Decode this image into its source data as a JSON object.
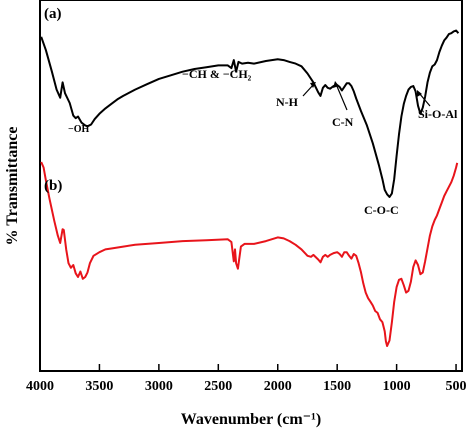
{
  "chart_data": {
    "type": "line",
    "xlabel": "Wavenumber (cm⁻¹)",
    "ylabel": "% Transmittance",
    "xlim": [
      4000,
      450
    ],
    "x_reversed": true,
    "y_ticks_shown": false,
    "xticks": [
      4000,
      3500,
      3000,
      2500,
      2000,
      1500,
      1000,
      500
    ],
    "tick_labels": [
      "4000",
      "3500",
      "3000",
      "2500",
      "2000",
      "1500",
      "1000",
      "500"
    ],
    "series": [
      {
        "color": "#000000",
        "ylim": [
          0,
          100
        ],
        "points": [
          [
            3990,
            89.5
          ],
          [
            3950,
            82.0
          ],
          [
            3900,
            70.0
          ],
          [
            3860,
            60.0
          ],
          [
            3830,
            55.5
          ],
          [
            3810,
            64.0
          ],
          [
            3790,
            58.0
          ],
          [
            3750,
            52.5
          ],
          [
            3720,
            45.5
          ],
          [
            3700,
            44.0
          ],
          [
            3680,
            45.0
          ],
          [
            3650,
            41.5
          ],
          [
            3620,
            40.0
          ],
          [
            3600,
            39.5
          ],
          [
            3570,
            40.5
          ],
          [
            3540,
            43.5
          ],
          [
            3500,
            46.5
          ],
          [
            3450,
            49.5
          ],
          [
            3400,
            52.0
          ],
          [
            3350,
            54.5
          ],
          [
            3300,
            56.5
          ],
          [
            3200,
            60.0
          ],
          [
            3100,
            63.0
          ],
          [
            3000,
            66.0
          ],
          [
            2900,
            68.0
          ],
          [
            2800,
            70.0
          ],
          [
            2700,
            71.5
          ],
          [
            2600,
            72.5
          ],
          [
            2500,
            73.5
          ],
          [
            2420,
            73.5
          ],
          [
            2390,
            72.0
          ],
          [
            2370,
            76.5
          ],
          [
            2350,
            70.0
          ],
          [
            2330,
            75.5
          ],
          [
            2300,
            74.5
          ],
          [
            2250,
            75.0
          ],
          [
            2200,
            74.5
          ],
          [
            2100,
            76.0
          ],
          [
            2000,
            77.0
          ],
          [
            1950,
            76.5
          ],
          [
            1900,
            75.5
          ],
          [
            1850,
            74.5
          ],
          [
            1800,
            73.0
          ],
          [
            1750,
            69.0
          ],
          [
            1700,
            64.0
          ],
          [
            1660,
            58.5
          ],
          [
            1640,
            56.5
          ],
          [
            1620,
            61.0
          ],
          [
            1600,
            62.5
          ],
          [
            1580,
            61.0
          ],
          [
            1560,
            60.5
          ],
          [
            1530,
            62.0
          ],
          [
            1500,
            62.5
          ],
          [
            1480,
            61.5
          ],
          [
            1460,
            59.5
          ],
          [
            1440,
            61.5
          ],
          [
            1420,
            63.5
          ],
          [
            1400,
            63.5
          ],
          [
            1380,
            62.0
          ],
          [
            1360,
            59.0
          ],
          [
            1340,
            55.0
          ],
          [
            1300,
            48.0
          ],
          [
            1250,
            40.0
          ],
          [
            1200,
            30.0
          ],
          [
            1150,
            18.0
          ],
          [
            1120,
            10.0
          ],
          [
            1100,
            4.0
          ],
          [
            1080,
            1.5
          ],
          [
            1060,
            0.0
          ],
          [
            1040,
            2.0
          ],
          [
            1020,
            10.0
          ],
          [
            1000,
            23.0
          ],
          [
            980,
            35.0
          ],
          [
            960,
            45.0
          ],
          [
            940,
            52.0
          ],
          [
            920,
            56.5
          ],
          [
            900,
            60.0
          ],
          [
            880,
            61.5
          ],
          [
            860,
            62.0
          ],
          [
            840,
            59.0
          ],
          [
            820,
            51.0
          ],
          [
            800,
            46.5
          ],
          [
            780,
            50.0
          ],
          [
            760,
            56.0
          ],
          [
            740,
            64.0
          ],
          [
            720,
            69.5
          ],
          [
            700,
            73.0
          ],
          [
            680,
            74.0
          ],
          [
            660,
            76.5
          ],
          [
            640,
            81.0
          ],
          [
            620,
            84.5
          ],
          [
            600,
            87.5
          ],
          [
            580,
            89.0
          ],
          [
            560,
            91.0
          ],
          [
            540,
            91.5
          ],
          [
            520,
            92.5
          ],
          [
            500,
            93.0
          ],
          [
            480,
            91.5
          ]
        ]
      },
      {
        "color": "#e8141b",
        "ylim": [
          0,
          100
        ],
        "points": [
          [
            3990,
            100.0
          ],
          [
            3970,
            97.0
          ],
          [
            3950,
            90.0
          ],
          [
            3920,
            80.0
          ],
          [
            3880,
            68.0
          ],
          [
            3850,
            60.0
          ],
          [
            3830,
            56.0
          ],
          [
            3810,
            63.5
          ],
          [
            3800,
            63.0
          ],
          [
            3780,
            52.5
          ],
          [
            3760,
            45.0
          ],
          [
            3740,
            42.5
          ],
          [
            3720,
            44.0
          ],
          [
            3700,
            39.5
          ],
          [
            3680,
            37.5
          ],
          [
            3660,
            40.5
          ],
          [
            3640,
            36.5
          ],
          [
            3620,
            37.5
          ],
          [
            3600,
            40.0
          ],
          [
            3580,
            45.0
          ],
          [
            3550,
            49.0
          ],
          [
            3500,
            51.0
          ],
          [
            3450,
            52.5
          ],
          [
            3400,
            53.0
          ],
          [
            3300,
            54.0
          ],
          [
            3200,
            55.0
          ],
          [
            3000,
            56.0
          ],
          [
            2800,
            57.0
          ],
          [
            2600,
            57.5
          ],
          [
            2420,
            58.0
          ],
          [
            2390,
            56.5
          ],
          [
            2370,
            46.0
          ],
          [
            2360,
            52.5
          ],
          [
            2350,
            45.0
          ],
          [
            2335,
            42.0
          ],
          [
            2310,
            54.0
          ],
          [
            2280,
            55.5
          ],
          [
            2200,
            55.5
          ],
          [
            2100,
            57.0
          ],
          [
            2000,
            59.0
          ],
          [
            1950,
            58.5
          ],
          [
            1900,
            57.0
          ],
          [
            1850,
            55.0
          ],
          [
            1800,
            52.5
          ],
          [
            1750,
            49.0
          ],
          [
            1720,
            48.5
          ],
          [
            1700,
            49.5
          ],
          [
            1660,
            47.0
          ],
          [
            1640,
            45.5
          ],
          [
            1620,
            48.5
          ],
          [
            1600,
            49.5
          ],
          [
            1580,
            48.5
          ],
          [
            1560,
            49.5
          ],
          [
            1530,
            50.5
          ],
          [
            1500,
            51.0
          ],
          [
            1480,
            50.0
          ],
          [
            1460,
            48.5
          ],
          [
            1440,
            51.0
          ],
          [
            1420,
            51.0
          ],
          [
            1400,
            49.0
          ],
          [
            1380,
            47.5
          ],
          [
            1360,
            50.0
          ],
          [
            1340,
            49.0
          ],
          [
            1320,
            45.0
          ],
          [
            1300,
            40.0
          ],
          [
            1280,
            34.0
          ],
          [
            1260,
            29.0
          ],
          [
            1240,
            26.0
          ],
          [
            1220,
            24.0
          ],
          [
            1200,
            22.0
          ],
          [
            1180,
            19.0
          ],
          [
            1160,
            18.0
          ],
          [
            1140,
            14.5
          ],
          [
            1120,
            13.0
          ],
          [
            1100,
            8.0
          ],
          [
            1090,
            2.5
          ],
          [
            1080,
            0.0
          ],
          [
            1070,
            1.5
          ],
          [
            1060,
            3.0
          ],
          [
            1040,
            13.0
          ],
          [
            1020,
            24.0
          ],
          [
            1000,
            32.0
          ],
          [
            980,
            36.0
          ],
          [
            960,
            36.5
          ],
          [
            940,
            33.0
          ],
          [
            920,
            29.0
          ],
          [
            900,
            30.0
          ],
          [
            880,
            35.0
          ],
          [
            860,
            43.0
          ],
          [
            840,
            46.5
          ],
          [
            820,
            44.0
          ],
          [
            800,
            39.0
          ],
          [
            780,
            40.0
          ],
          [
            760,
            46.0
          ],
          [
            740,
            53.0
          ],
          [
            720,
            60.0
          ],
          [
            700,
            65.0
          ],
          [
            680,
            68.5
          ],
          [
            660,
            71.0
          ],
          [
            640,
            74.5
          ],
          [
            620,
            78.0
          ],
          [
            600,
            81.5
          ],
          [
            580,
            84.0
          ],
          [
            560,
            86.5
          ],
          [
            540,
            89.0
          ],
          [
            520,
            92.5
          ],
          [
            500,
            97.0
          ],
          [
            490,
            99.5
          ]
        ]
      }
    ],
    "panel_labels": [
      "(a)",
      "(b)"
    ],
    "annotations": [
      {
        "text": "−OH",
        "x": 3620
      },
      {
        "text": "−CH & −CH₂",
        "x": 2450
      },
      {
        "text": "N-H",
        "x": 1640
      },
      {
        "text": "C-N",
        "x": 1400
      },
      {
        "text": "C-O-C",
        "x": 1050
      },
      {
        "text": "Si-O-Al",
        "x": 710
      }
    ]
  }
}
